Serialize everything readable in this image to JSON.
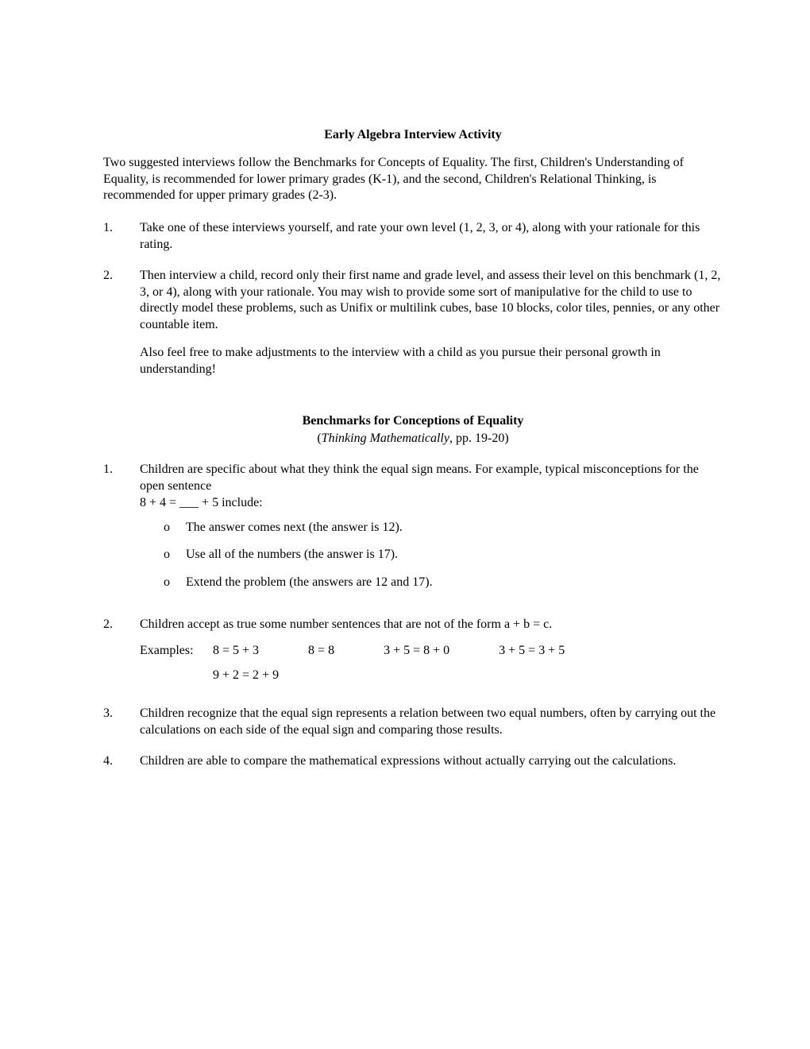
{
  "title": "Early Algebra Interview Activity",
  "intro": "Two suggested interviews follow the Benchmarks for Concepts of Equality. The first, Children's Understanding of Equality, is recommended for lower primary grades (K-1), and the second, Children's Relational Thinking, is recommended for upper primary grades (2-3).",
  "tasks": [
    {
      "num": "1.",
      "paras": [
        "Take one of these interviews yourself, and rate your own level (1, 2, 3, or 4), along with your rationale for this rating."
      ]
    },
    {
      "num": "2.",
      "paras": [
        "Then interview a child, record only their first name and grade level, and assess their level on this benchmark (1, 2, 3, or 4), along with your rationale. You may wish to provide some sort of manipulative for the child to use to directly model these problems, such as Unifix or multilink cubes, base 10 blocks, color tiles, pennies, or any other countable item.",
        "Also feel free to make adjustments to the interview with a child as you pursue their personal growth in understanding!"
      ]
    }
  ],
  "section_heading": "Benchmarks for Conceptions of Equality",
  "section_sub_open": "(",
  "section_sub_ital": "Thinking Mathematically",
  "section_sub_close": ", pp. 19-20)",
  "benchmarks": {
    "b1": {
      "num": "1.",
      "lead": "Children are specific about what they think the equal sign means. For example, typical misconceptions for the open sentence",
      "equation": "8 + 4 = ___ + 5 include:",
      "bullets": [
        "The answer comes next (the answer is 12).",
        "Use all of the numbers (the answer is 17).",
        "Extend the problem (the answers are 12 and 17)."
      ]
    },
    "b2": {
      "num": "2.",
      "lead": "Children accept as true some number sentences that are not of the form a + b = c.",
      "examples_label": "Examples:",
      "examples_row1": [
        "8 = 5 + 3",
        "8 = 8",
        "3 + 5 = 8 + 0",
        "3 + 5 = 3 + 5"
      ],
      "examples_row2": "9 + 2 = 2 + 9"
    },
    "b3": {
      "num": "3.",
      "text": "Children recognize that the equal sign represents a relation between two equal numbers, often by carrying out the calculations on each side of the equal sign and comparing those results."
    },
    "b4": {
      "num": "4.",
      "text": "Children are able to compare the mathematical expressions without actually carrying out the calculations."
    }
  },
  "bullet_char": "o"
}
